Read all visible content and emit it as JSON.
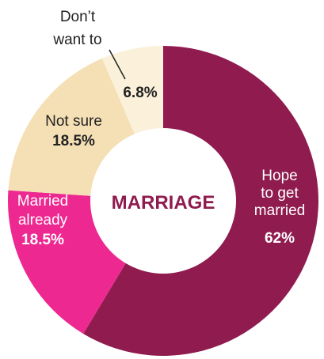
{
  "chart_data": {
    "type": "pie",
    "donut": true,
    "center_label": "MARRIAGE",
    "slices": [
      {
        "label_lines": [
          "Hope",
          "to get",
          "married"
        ],
        "value_label": "62%",
        "value": 62,
        "color": "#8f1b4f",
        "text_color": "#ffffff"
      },
      {
        "label_lines": [
          "Married",
          "already"
        ],
        "value_label": "18.5%",
        "value": 18.5,
        "color": "#ee2891",
        "text_color": "#ffffff"
      },
      {
        "label_lines": [
          "Not sure"
        ],
        "value_label": "18.5%",
        "value": 18.5,
        "color": "#f5e0b5",
        "text_color": "#222222"
      },
      {
        "label_lines": [
          "Don’t",
          "want to"
        ],
        "value_label": "6.8%",
        "value": 6.8,
        "color": "#fbf0da",
        "text_color": "#222222"
      }
    ],
    "colors": {
      "center_text": "#8f1b4f",
      "leader_line": "#222222"
    }
  }
}
